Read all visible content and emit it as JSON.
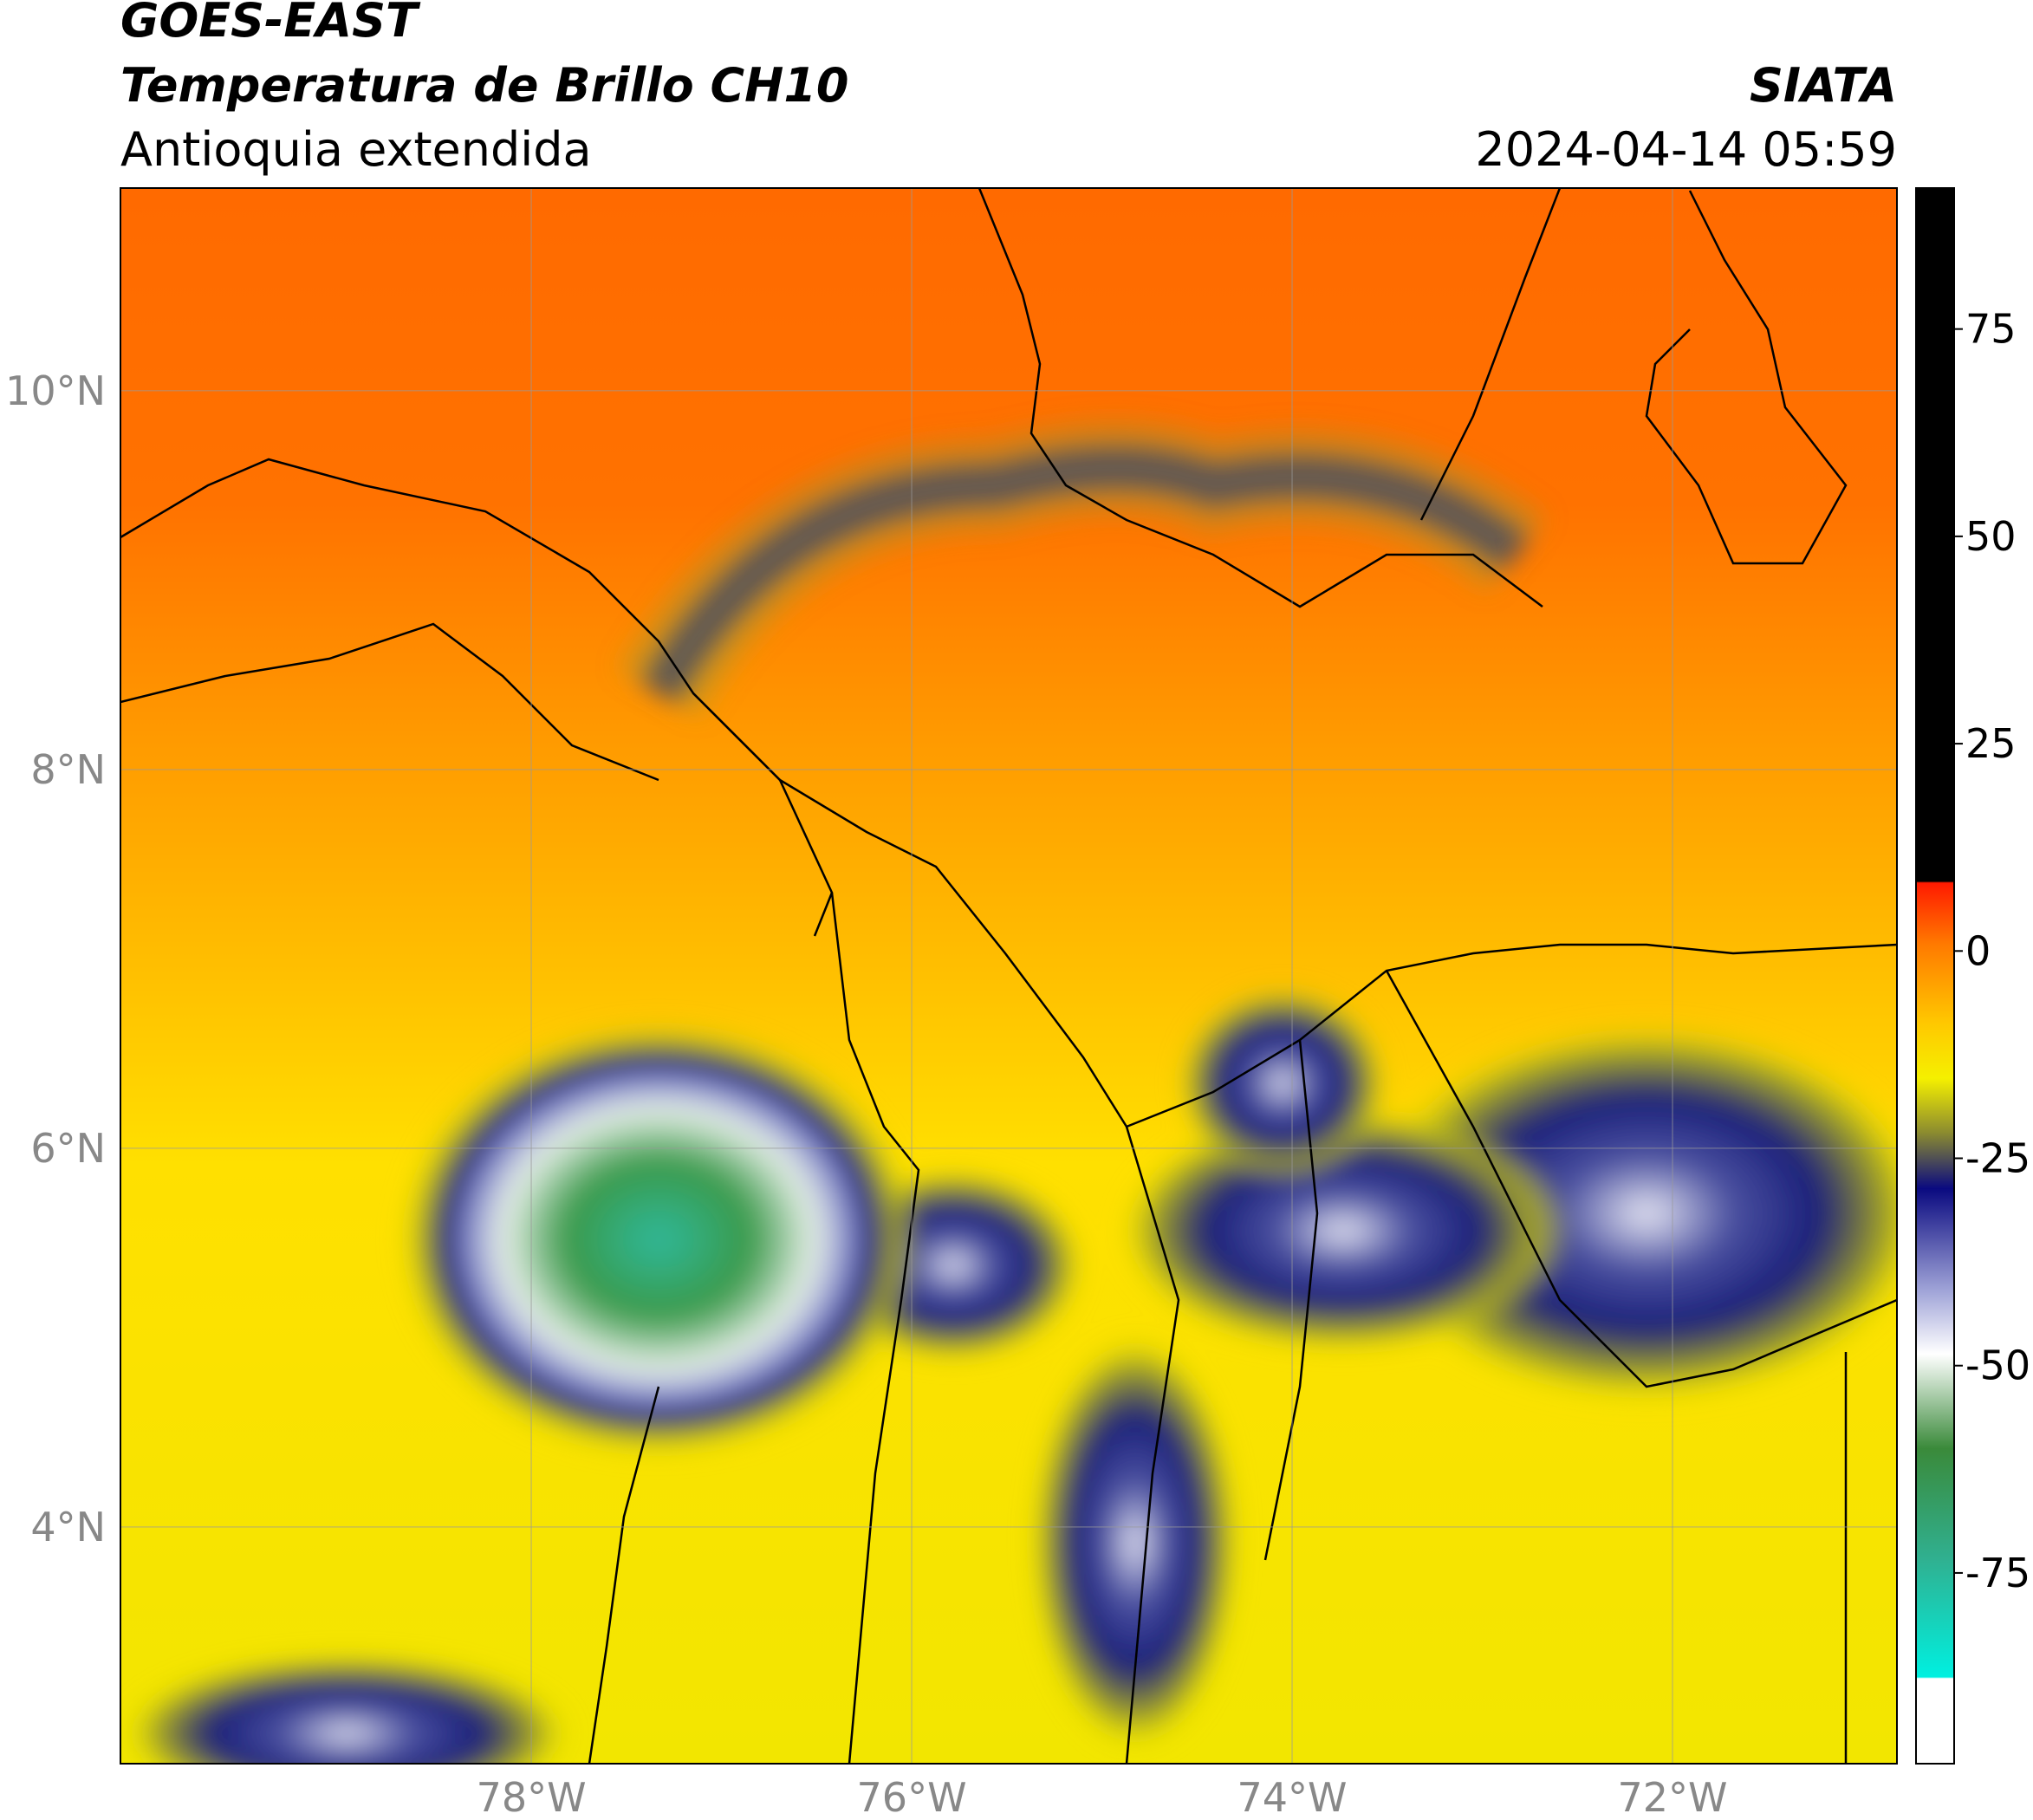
{
  "header": {
    "satellite": "GOES-EAST",
    "product": "Temperatura de Brillo CH10",
    "region": "Antioquia extendida",
    "agency": "SIATA",
    "datetime": "2024-04-14 05:59"
  },
  "chart_data": {
    "type": "map",
    "xlim": [
      -80.16,
      -70.82
    ],
    "ylim": [
      2.75,
      11.07
    ],
    "xticks": [
      {
        "value": -78,
        "label": "78°W"
      },
      {
        "value": -76,
        "label": "76°W"
      },
      {
        "value": -74,
        "label": "74°W"
      },
      {
        "value": -72,
        "label": "72°W"
      }
    ],
    "yticks": [
      {
        "value": 4,
        "label": "4°N"
      },
      {
        "value": 6,
        "label": "6°N"
      },
      {
        "value": 8,
        "label": "8°N"
      },
      {
        "value": 10,
        "label": "10°N"
      }
    ],
    "grid": true,
    "colorbar": {
      "lim": [
        -98,
        92
      ],
      "ticks": [
        75,
        50,
        25,
        0,
        -25,
        -50,
        -75
      ]
    }
  }
}
